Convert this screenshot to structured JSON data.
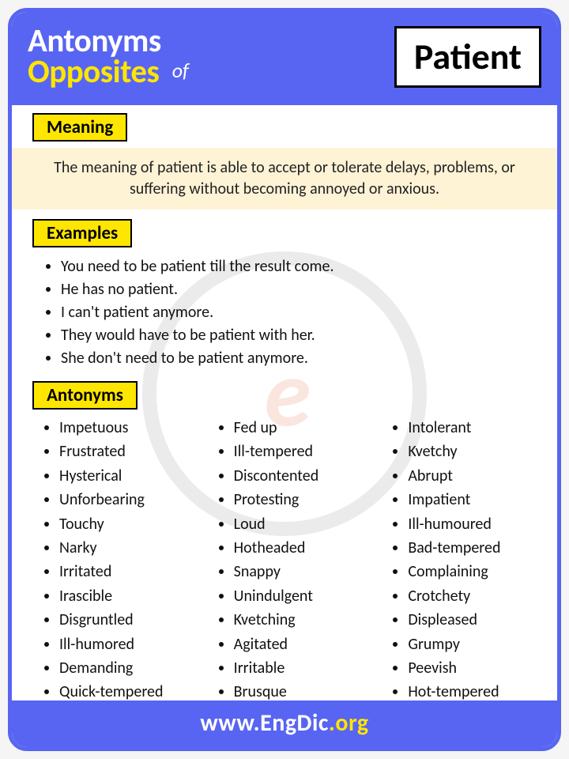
{
  "colors": {
    "primary": "#5865f2",
    "accent": "#ffe600",
    "meaning_bg": "#fff3d6",
    "text": "#111111",
    "white": "#ffffff"
  },
  "header": {
    "title_line1": "Antonyms",
    "title_line2": "Opposites",
    "connector": "of",
    "word": "Patient"
  },
  "sections": {
    "meaning_label": "Meaning",
    "examples_label": "Examples",
    "antonyms_label": "Antonyms"
  },
  "meaning_text": "The meaning of patient is able to accept or tolerate delays, problems, or suffering without becoming annoyed or anxious.",
  "examples": [
    "You need to be patient till the result come.",
    "He has no patient.",
    "I can't patient anymore.",
    "They would have to be patient with her.",
    "She don't need to be patient anymore."
  ],
  "antonyms": {
    "col1": [
      "Impetuous",
      "Frustrated",
      "Hysterical",
      "Unforbearing",
      "Touchy",
      "Narky",
      "Irritated",
      "Irascible",
      "Disgruntled",
      "Ill-humored",
      "Demanding",
      "Quick-tempered"
    ],
    "col2": [
      "Fed up",
      "Ill-tempered",
      "Discontented",
      "Protesting",
      "Loud",
      "Hotheaded",
      "Snappy",
      "Unindulgent",
      "Kvetching",
      "Agitated",
      "Irritable",
      "Brusque"
    ],
    "col3": [
      "Intolerant",
      "Kvetchy",
      "Abrupt",
      "Impatient",
      "Ill-humoured",
      "Bad-tempered",
      "Complaining",
      "Crotchety",
      "Displeased",
      "Grumpy",
      "Peevish",
      "Hot-tempered"
    ]
  },
  "footer": {
    "prefix": "www.",
    "name": "EngDic",
    "suffix": ".org"
  },
  "watermark": "e"
}
